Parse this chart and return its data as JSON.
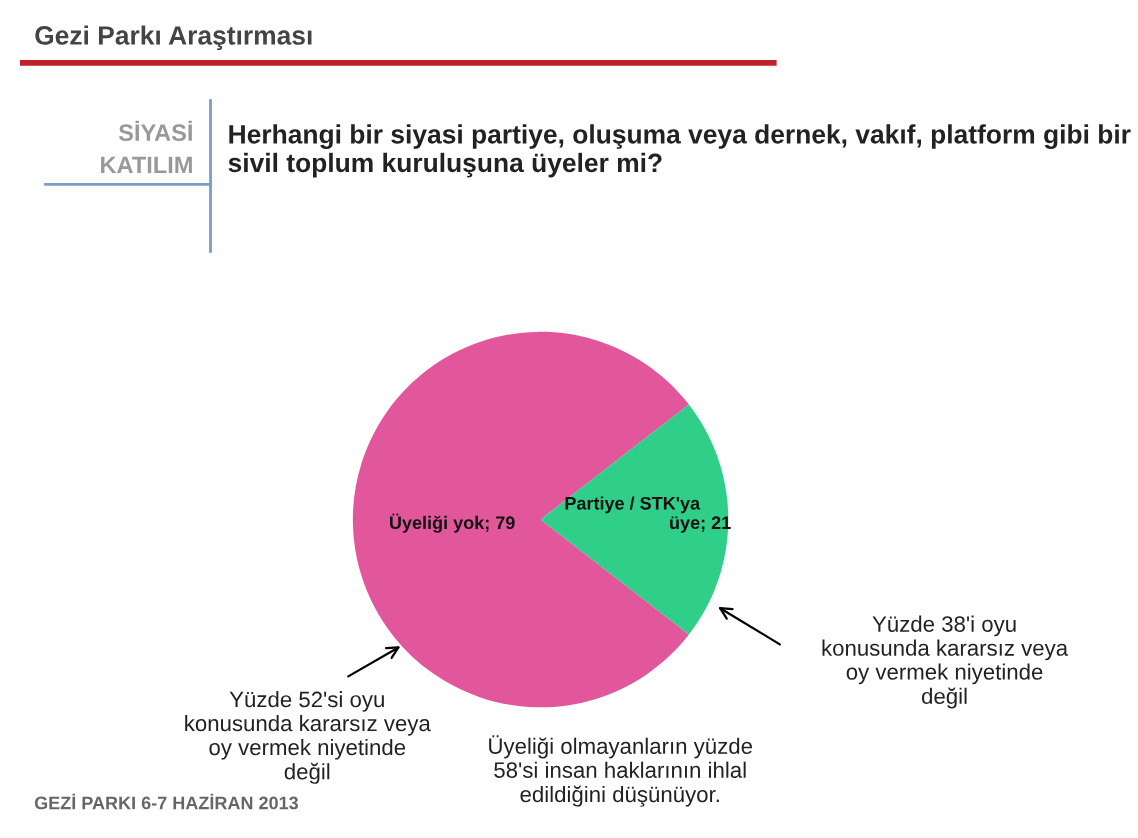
{
  "chart_data": {
    "type": "pie",
    "title": "Gezi Parkı Araştırması",
    "subtitle": "Herhangi bir siyasi partiye, oluşuma veya dernek, vakıf, platform gibi bir sivil toplum kuruluşuna üyeler mi?",
    "ylabel": "SİYASİ KATILIM",
    "categories": [
      "Üyeliği yok",
      "Partiye / STK'ya üye"
    ],
    "values": [
      79,
      21
    ],
    "colors": [
      "#e2579b",
      "#2fcf89"
    ],
    "value_labels": [
      "; 79",
      "; 21"
    ],
    "annotations": [
      "Yüzde 52'si oyu konusunda kararsız veya oy vermek niyetinde değil",
      "Yüzde 38'i oyu konusunda kararsız veya oy vermek niyetinde değil",
      "Üyeliği olmayanların yüzde 58'si insan haklarının ihlal edildiğini düşünüyor.",
      "GEZİ PARKI 6-7 HAZİRAN 2013"
    ]
  }
}
